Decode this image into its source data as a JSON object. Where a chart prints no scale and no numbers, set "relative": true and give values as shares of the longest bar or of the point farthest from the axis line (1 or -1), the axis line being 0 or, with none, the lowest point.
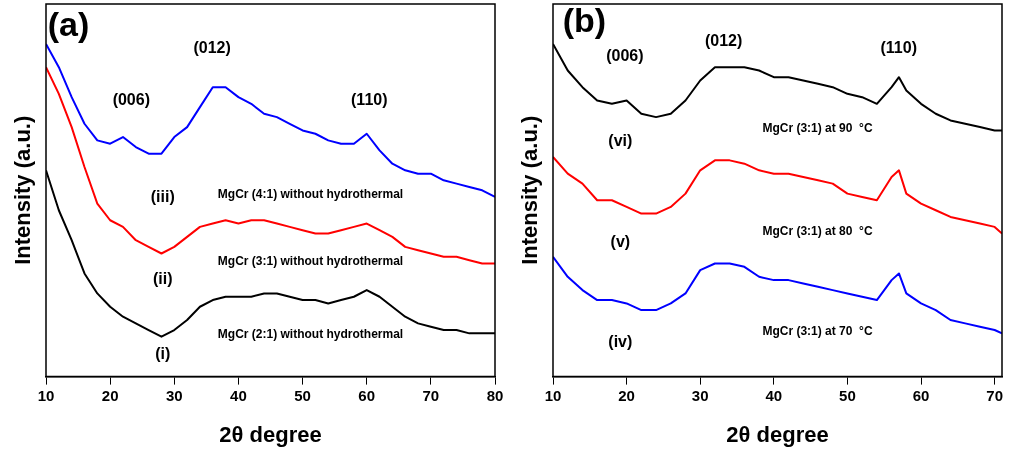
{
  "chart_data": [
    {
      "type": "line",
      "xlabel": "2θ degree",
      "ylabel": "Intensity (a.u.)",
      "relative": true,
      "grid": false,
      "legend": false,
      "marker": "none",
      "line_style": "solid",
      "xlim": [
        10,
        80
      ],
      "xticks": [
        10,
        20,
        30,
        40,
        50,
        60,
        70,
        80
      ],
      "x": [
        10,
        12,
        14,
        16,
        18,
        20,
        22,
        24,
        26,
        28,
        30,
        32,
        34,
        36,
        38,
        40,
        42,
        44,
        46,
        48,
        50,
        52,
        54,
        56,
        58,
        60,
        62,
        64,
        66,
        68,
        70,
        72,
        74,
        76,
        78,
        80
      ],
      "series": [
        {
          "name": "MgCr (4:1) without hydrothermal",
          "color": "#0000ff",
          "values": [
            1,
            0.93,
            0.84,
            0.76,
            0.71,
            0.7,
            0.72,
            0.69,
            0.67,
            0.67,
            0.72,
            0.75,
            0.81,
            0.87,
            0.87,
            0.84,
            0.82,
            0.79,
            0.78,
            0.76,
            0.74,
            0.73,
            0.71,
            0.7,
            0.7,
            0.73,
            0.68,
            0.64,
            0.62,
            0.61,
            0.61,
            0.59,
            0.58,
            0.57,
            0.56,
            0.54
          ]
        },
        {
          "name": "MgCr (3:1) without hydrothermal",
          "color": "#ff0000",
          "values": [
            0.93,
            0.85,
            0.75,
            0.63,
            0.52,
            0.47,
            0.45,
            0.41,
            0.39,
            0.37,
            0.39,
            0.42,
            0.45,
            0.46,
            0.47,
            0.46,
            0.47,
            0.47,
            0.46,
            0.45,
            0.44,
            0.43,
            0.43,
            0.44,
            0.45,
            0.46,
            0.44,
            0.42,
            0.39,
            0.38,
            0.37,
            0.36,
            0.36,
            0.35,
            0.34,
            0.34
          ]
        },
        {
          "name": "MgCr (2:1) without hydrothermal",
          "color": "#000000",
          "values": [
            0.62,
            0.5,
            0.41,
            0.31,
            0.25,
            0.21,
            0.18,
            0.16,
            0.14,
            0.12,
            0.14,
            0.17,
            0.21,
            0.23,
            0.24,
            0.24,
            0.24,
            0.25,
            0.25,
            0.24,
            0.23,
            0.23,
            0.22,
            0.23,
            0.24,
            0.26,
            0.24,
            0.21,
            0.18,
            0.16,
            0.15,
            0.14,
            0.14,
            0.13,
            0.13,
            0.13
          ]
        }
      ],
      "annotations": [
        "(a)",
        "(006)",
        "(012)",
        "(110)",
        "(iii)",
        "(ii)",
        "(i)"
      ]
    },
    {
      "type": "line",
      "xlabel": "2θ degree",
      "ylabel": "Intensity (a.u.)",
      "relative": true,
      "grid": false,
      "legend": false,
      "marker": "none",
      "line_style": "solid",
      "xlim": [
        10,
        71
      ],
      "xticks": [
        10,
        20,
        30,
        40,
        50,
        60,
        70
      ],
      "x": [
        10,
        12,
        14,
        16,
        18,
        20,
        22,
        24,
        26,
        28,
        30,
        32,
        34,
        36,
        38,
        40,
        42,
        44,
        46,
        48,
        50,
        52,
        54,
        56,
        57,
        58,
        60,
        62,
        64,
        66,
        68,
        70,
        71
      ],
      "series": [
        {
          "name": "MgCr (3:1) at 90  °C",
          "color": "#000000",
          "values": [
            1,
            0.92,
            0.87,
            0.83,
            0.82,
            0.83,
            0.79,
            0.78,
            0.79,
            0.83,
            0.89,
            0.93,
            0.93,
            0.93,
            0.92,
            0.9,
            0.9,
            0.89,
            0.88,
            0.87,
            0.85,
            0.84,
            0.82,
            0.87,
            0.9,
            0.86,
            0.82,
            0.79,
            0.77,
            0.76,
            0.75,
            0.74,
            0.74
          ]
        },
        {
          "name": "MgCr (3:1) at 80  °C",
          "color": "#ff0000",
          "values": [
            0.66,
            0.61,
            0.58,
            0.53,
            0.53,
            0.51,
            0.49,
            0.49,
            0.51,
            0.55,
            0.62,
            0.65,
            0.65,
            0.64,
            0.62,
            0.61,
            0.61,
            0.6,
            0.59,
            0.58,
            0.55,
            0.54,
            0.53,
            0.6,
            0.62,
            0.55,
            0.52,
            0.5,
            0.48,
            0.47,
            0.46,
            0.45,
            0.43
          ]
        },
        {
          "name": "MgCr (3:1) at 70  °C",
          "color": "#0000ff",
          "values": [
            0.36,
            0.3,
            0.26,
            0.23,
            0.23,
            0.22,
            0.2,
            0.2,
            0.22,
            0.25,
            0.32,
            0.34,
            0.34,
            0.33,
            0.3,
            0.29,
            0.29,
            0.28,
            0.27,
            0.26,
            0.25,
            0.24,
            0.23,
            0.29,
            0.31,
            0.25,
            0.22,
            0.2,
            0.17,
            0.16,
            0.15,
            0.14,
            0.13
          ]
        }
      ],
      "annotations": [
        "(b)",
        "(006)",
        "(012)",
        "(110)",
        "(vi)",
        "(v)",
        "(iv)"
      ]
    }
  ]
}
